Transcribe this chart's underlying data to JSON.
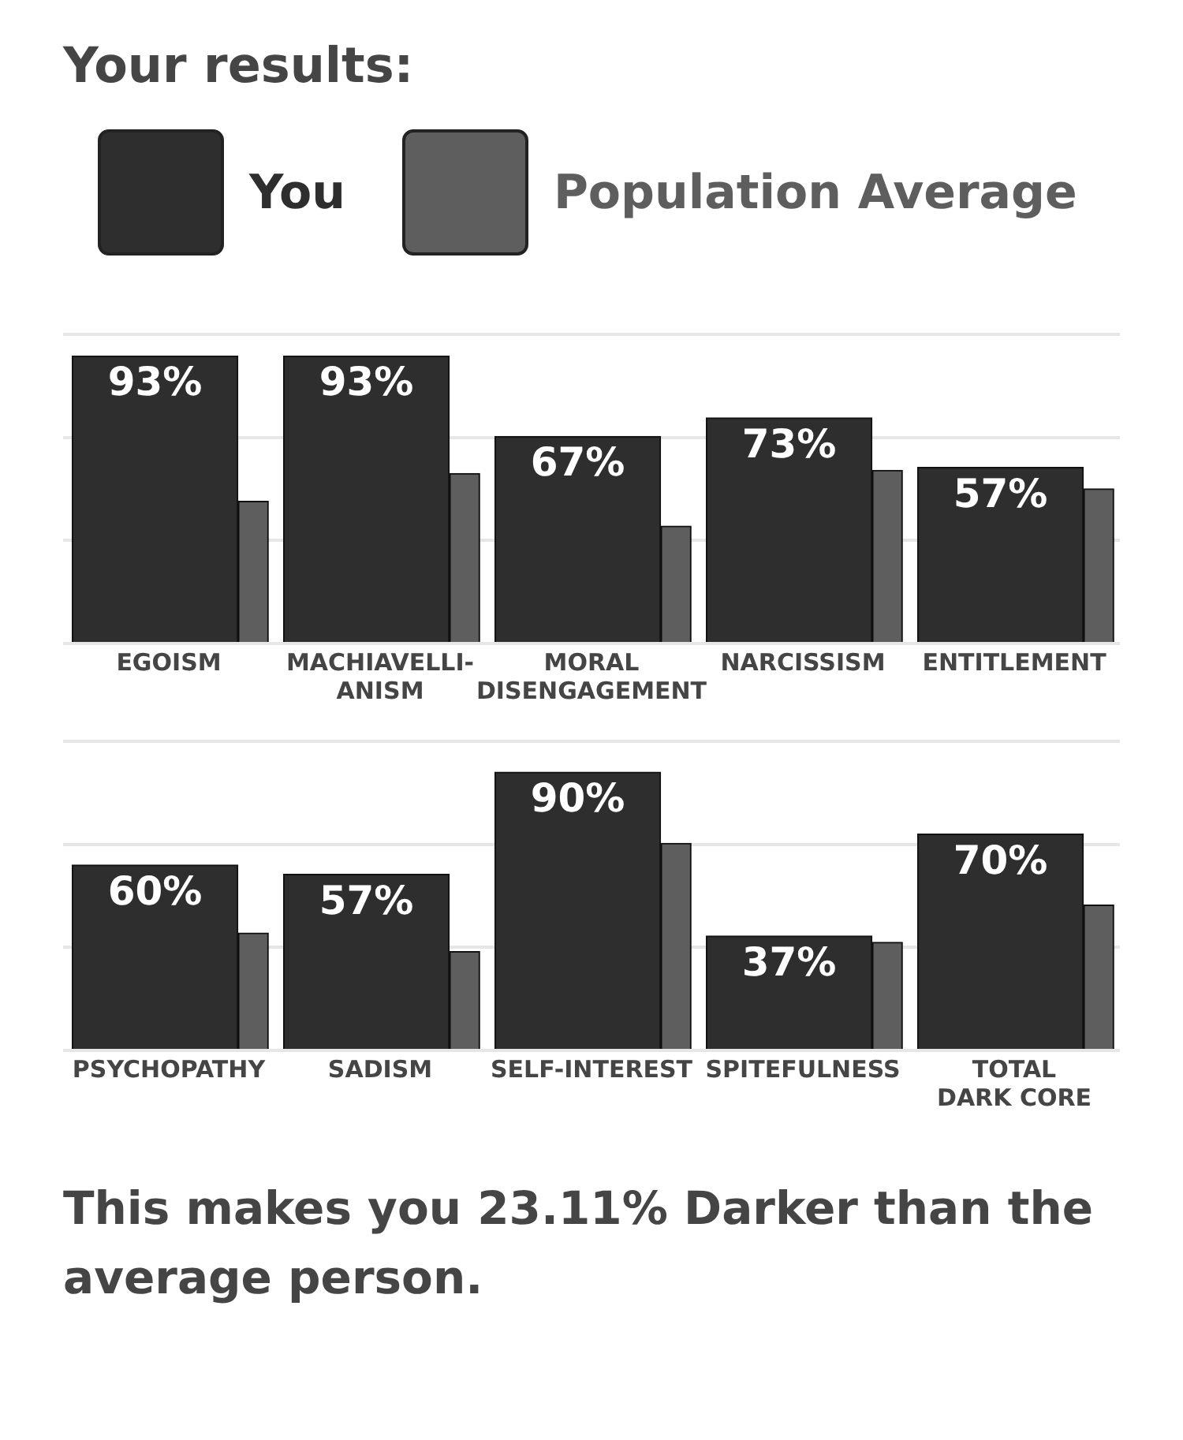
{
  "chart_data": [
    {
      "type": "bar",
      "title": "Your results:",
      "categories": [
        "EGOISM",
        "MACHIAVELLI-ANISM",
        "MORAL DISENGAGEMENT",
        "NARCISSISM",
        "ENTITLEMENT"
      ],
      "series": [
        {
          "name": "You",
          "color": "#2e2e2e",
          "values": [
            93,
            93,
            67,
            73,
            57
          ],
          "value_labels": [
            "93%",
            "93%",
            "67%",
            "73%",
            "57%"
          ]
        },
        {
          "name": "Population Average",
          "color": "#5e5e5e",
          "values": [
            46,
            55,
            38,
            56,
            50
          ]
        }
      ],
      "ylim": [
        0,
        100
      ],
      "yticks": [
        {
          "value": 0,
          "label": null
        },
        {
          "value": 33.3,
          "label": null
        },
        {
          "value": 66.7,
          "label": null
        },
        {
          "value": 100,
          "label": null
        }
      ],
      "grid": "y",
      "tick_labels": "x",
      "legend": "top"
    },
    {
      "type": "bar",
      "categories": [
        "PSYCHOPATHY",
        "SADISM",
        "SELF-INTEREST",
        "SPITEFULNESS",
        "TOTAL DARK CORE"
      ],
      "series": [
        {
          "color": "#2e2e2e",
          "values": [
            60,
            57,
            90,
            37,
            70
          ],
          "value_labels": [
            "60%",
            "57%",
            "90%",
            "37%",
            "70%"
          ]
        },
        {
          "color": "#5e5e5e",
          "values": [
            38,
            32,
            67,
            35,
            47
          ]
        }
      ],
      "ylim": [
        0,
        100
      ],
      "yticks": [
        {
          "value": 0,
          "label": null
        },
        {
          "value": 33.3,
          "label": null
        },
        {
          "value": 66.7,
          "label": null
        },
        {
          "value": 100,
          "label": null
        }
      ],
      "grid": "y",
      "tick_labels": "x",
      "legend": false,
      "annotations": [
        "This makes you 23.11% Darker than the average person."
      ]
    }
  ]
}
